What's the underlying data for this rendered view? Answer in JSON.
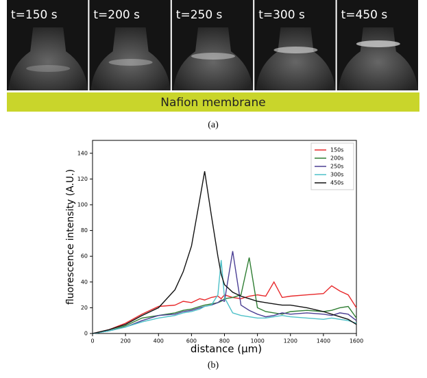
{
  "panel_a": {
    "frames": [
      "t=150 s",
      "t=200 s",
      "t=250 s",
      "t=300 s",
      "t=450 s"
    ],
    "membrane_label": "Nafion membrane",
    "caption": "(a)"
  },
  "chart_data": {
    "type": "line",
    "x_label": "distance (µm)",
    "y_label": "fluorescence intensity (A.U.)",
    "x": [
      0,
      100,
      200,
      300,
      400,
      500,
      550,
      600,
      650,
      680,
      720,
      760,
      780,
      800,
      850,
      900,
      950,
      1000,
      1050,
      1100,
      1150,
      1200,
      1300,
      1400,
      1450,
      1500,
      1550,
      1600
    ],
    "series": [
      {
        "name": "150s",
        "color": "#e8282a",
        "values": [
          0,
          3,
          8,
          15,
          21,
          22,
          25,
          24,
          27,
          26,
          28,
          29,
          27,
          30,
          28,
          27,
          29,
          30,
          29,
          40,
          28,
          29,
          30,
          31,
          37,
          33,
          30,
          20
        ]
      },
      {
        "name": "200s",
        "color": "#2e7d32",
        "values": [
          0,
          2,
          6,
          12,
          14,
          16,
          18,
          19,
          21,
          22,
          23,
          24,
          25,
          27,
          28,
          30,
          59,
          20,
          17,
          16,
          15,
          17,
          18,
          17,
          18,
          20,
          21,
          12
        ]
      },
      {
        "name": "250s",
        "color": "#4b3f94",
        "values": [
          0,
          2,
          5,
          10,
          14,
          15,
          17,
          18,
          20,
          21,
          22,
          24,
          26,
          25,
          64,
          22,
          18,
          15,
          13,
          14,
          16,
          15,
          16,
          15,
          14,
          16,
          15,
          10
        ]
      },
      {
        "name": "300s",
        "color": "#4dc0c8",
        "values": [
          0,
          2,
          5,
          9,
          12,
          14,
          16,
          17,
          19,
          21,
          22,
          30,
          57,
          28,
          16,
          14,
          13,
          12,
          12,
          13,
          14,
          13,
          12,
          11,
          12,
          11,
          10,
          8
        ]
      },
      {
        "name": "450s",
        "color": "#111111",
        "values": [
          0,
          3,
          7,
          14,
          20,
          34,
          48,
          68,
          104,
          126,
          92,
          60,
          46,
          38,
          32,
          29,
          27,
          25,
          24,
          23,
          22,
          22,
          20,
          17,
          15,
          13,
          11,
          7
        ]
      }
    ],
    "xlim": [
      0,
      1600
    ],
    "xticks": [
      0,
      200,
      400,
      600,
      800,
      1000,
      1200,
      1400,
      1600
    ],
    "ylim": [
      0,
      150
    ],
    "yticks": [
      0,
      20,
      40,
      60,
      80,
      100,
      120,
      140
    ],
    "legend": "upper right"
  },
  "panel_b_caption": "(b)"
}
